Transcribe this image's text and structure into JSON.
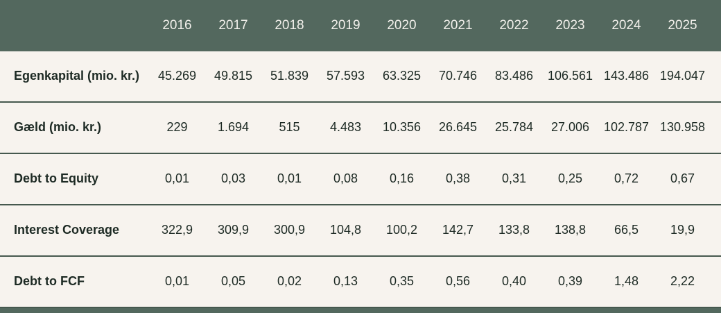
{
  "chart_data": {
    "type": "table",
    "title": "",
    "columns": [
      "2016",
      "2017",
      "2018",
      "2019",
      "2020",
      "2021",
      "2022",
      "2023",
      "2024",
      "2025"
    ],
    "rows": [
      {
        "label": "Egenkapital (mio. kr.)",
        "values": [
          "45.269",
          "49.815",
          "51.839",
          "57.593",
          "63.325",
          "70.746",
          "83.486",
          "106.561",
          "143.486",
          "194.047"
        ]
      },
      {
        "label": "Gæld (mio. kr.)",
        "values": [
          "229",
          "1.694",
          "515",
          "4.483",
          "10.356",
          "26.645",
          "25.784",
          "27.006",
          "102.787",
          "130.958"
        ]
      },
      {
        "label": "Debt to Equity",
        "values": [
          "0,01",
          "0,03",
          "0,01",
          "0,08",
          "0,16",
          "0,38",
          "0,31",
          "0,25",
          "0,72",
          "0,67"
        ]
      },
      {
        "label": "Interest Coverage",
        "values": [
          "322,9",
          "309,9",
          "300,9",
          "104,8",
          "100,2",
          "142,7",
          "133,8",
          "138,8",
          "66,5",
          "19,9"
        ]
      },
      {
        "label": "Debt to FCF",
        "values": [
          "0,01",
          "0,05",
          "0,02",
          "0,13",
          "0,35",
          "0,56",
          "0,40",
          "0,39",
          "1,48",
          "2,22"
        ]
      }
    ],
    "layout_hints": {
      "header_position": "top",
      "label_column": "left",
      "value_alignment": "center",
      "grid": "horizontal-dividers-only"
    }
  },
  "colors": {
    "header_bg": "#53685e",
    "header_text": "#f2f0eb",
    "row_bg": "#f7f3ee",
    "divider": "#46584e",
    "text": "#1d2a24"
  }
}
